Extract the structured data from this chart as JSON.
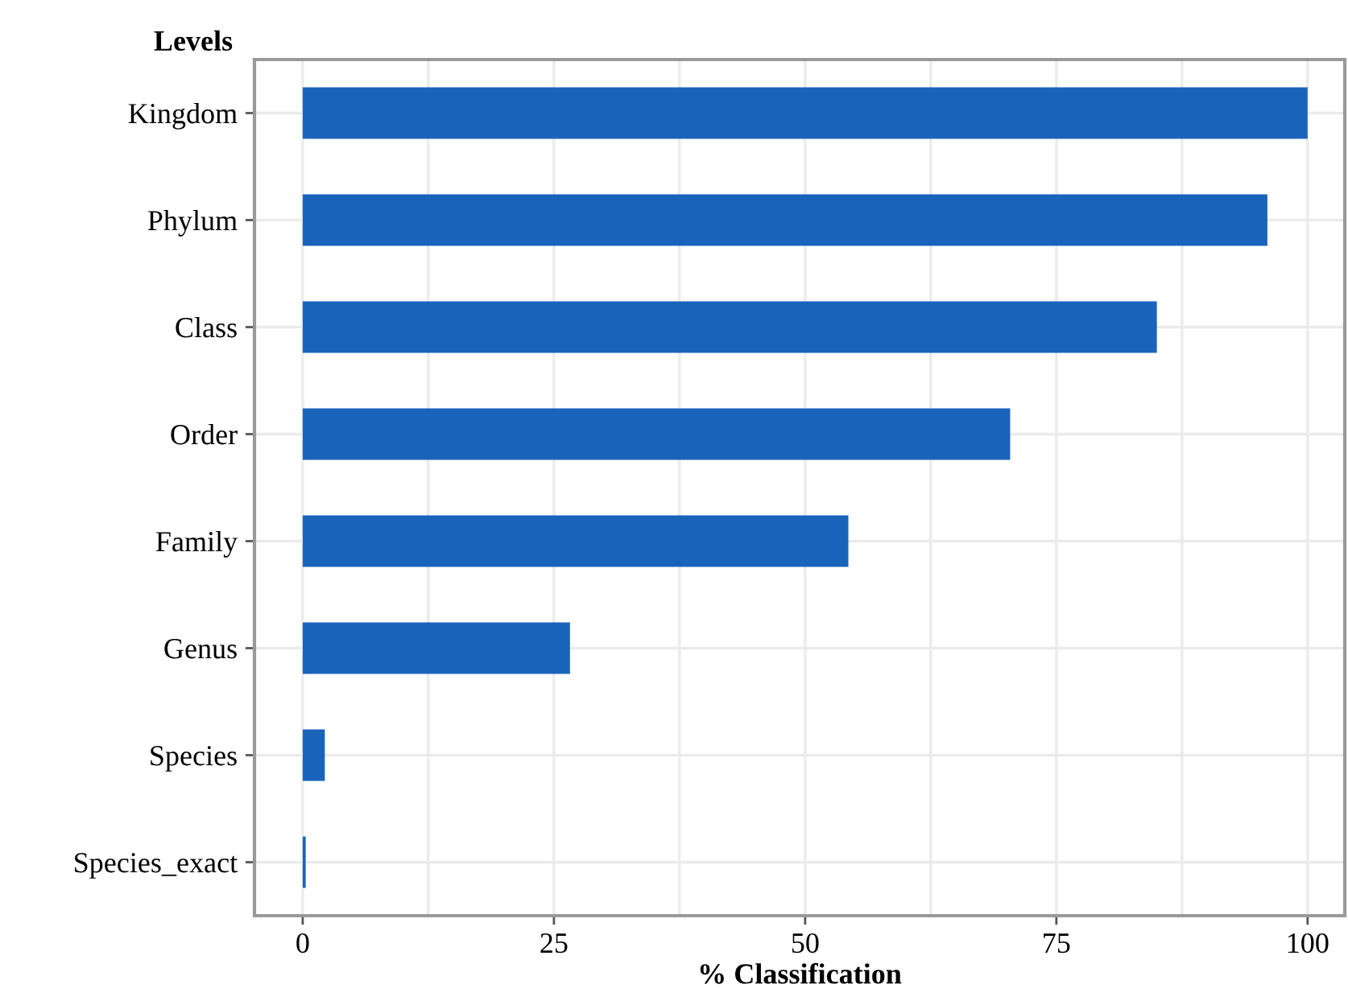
{
  "chart_data": {
    "type": "bar",
    "orientation": "horizontal",
    "ylabel": "Levels",
    "xlabel": "% Classification",
    "categories": [
      "Kingdom",
      "Phylum",
      "Class",
      "Order",
      "Family",
      "Genus",
      "Species",
      "Species_exact"
    ],
    "values": [
      100,
      96,
      85,
      70.4,
      54.3,
      26.6,
      2.2,
      0.3
    ],
    "color": "#1a63bb",
    "xlim": [
      -4.8,
      103.7
    ],
    "xticks": [
      0,
      25,
      50,
      75,
      100
    ],
    "grid": true
  }
}
